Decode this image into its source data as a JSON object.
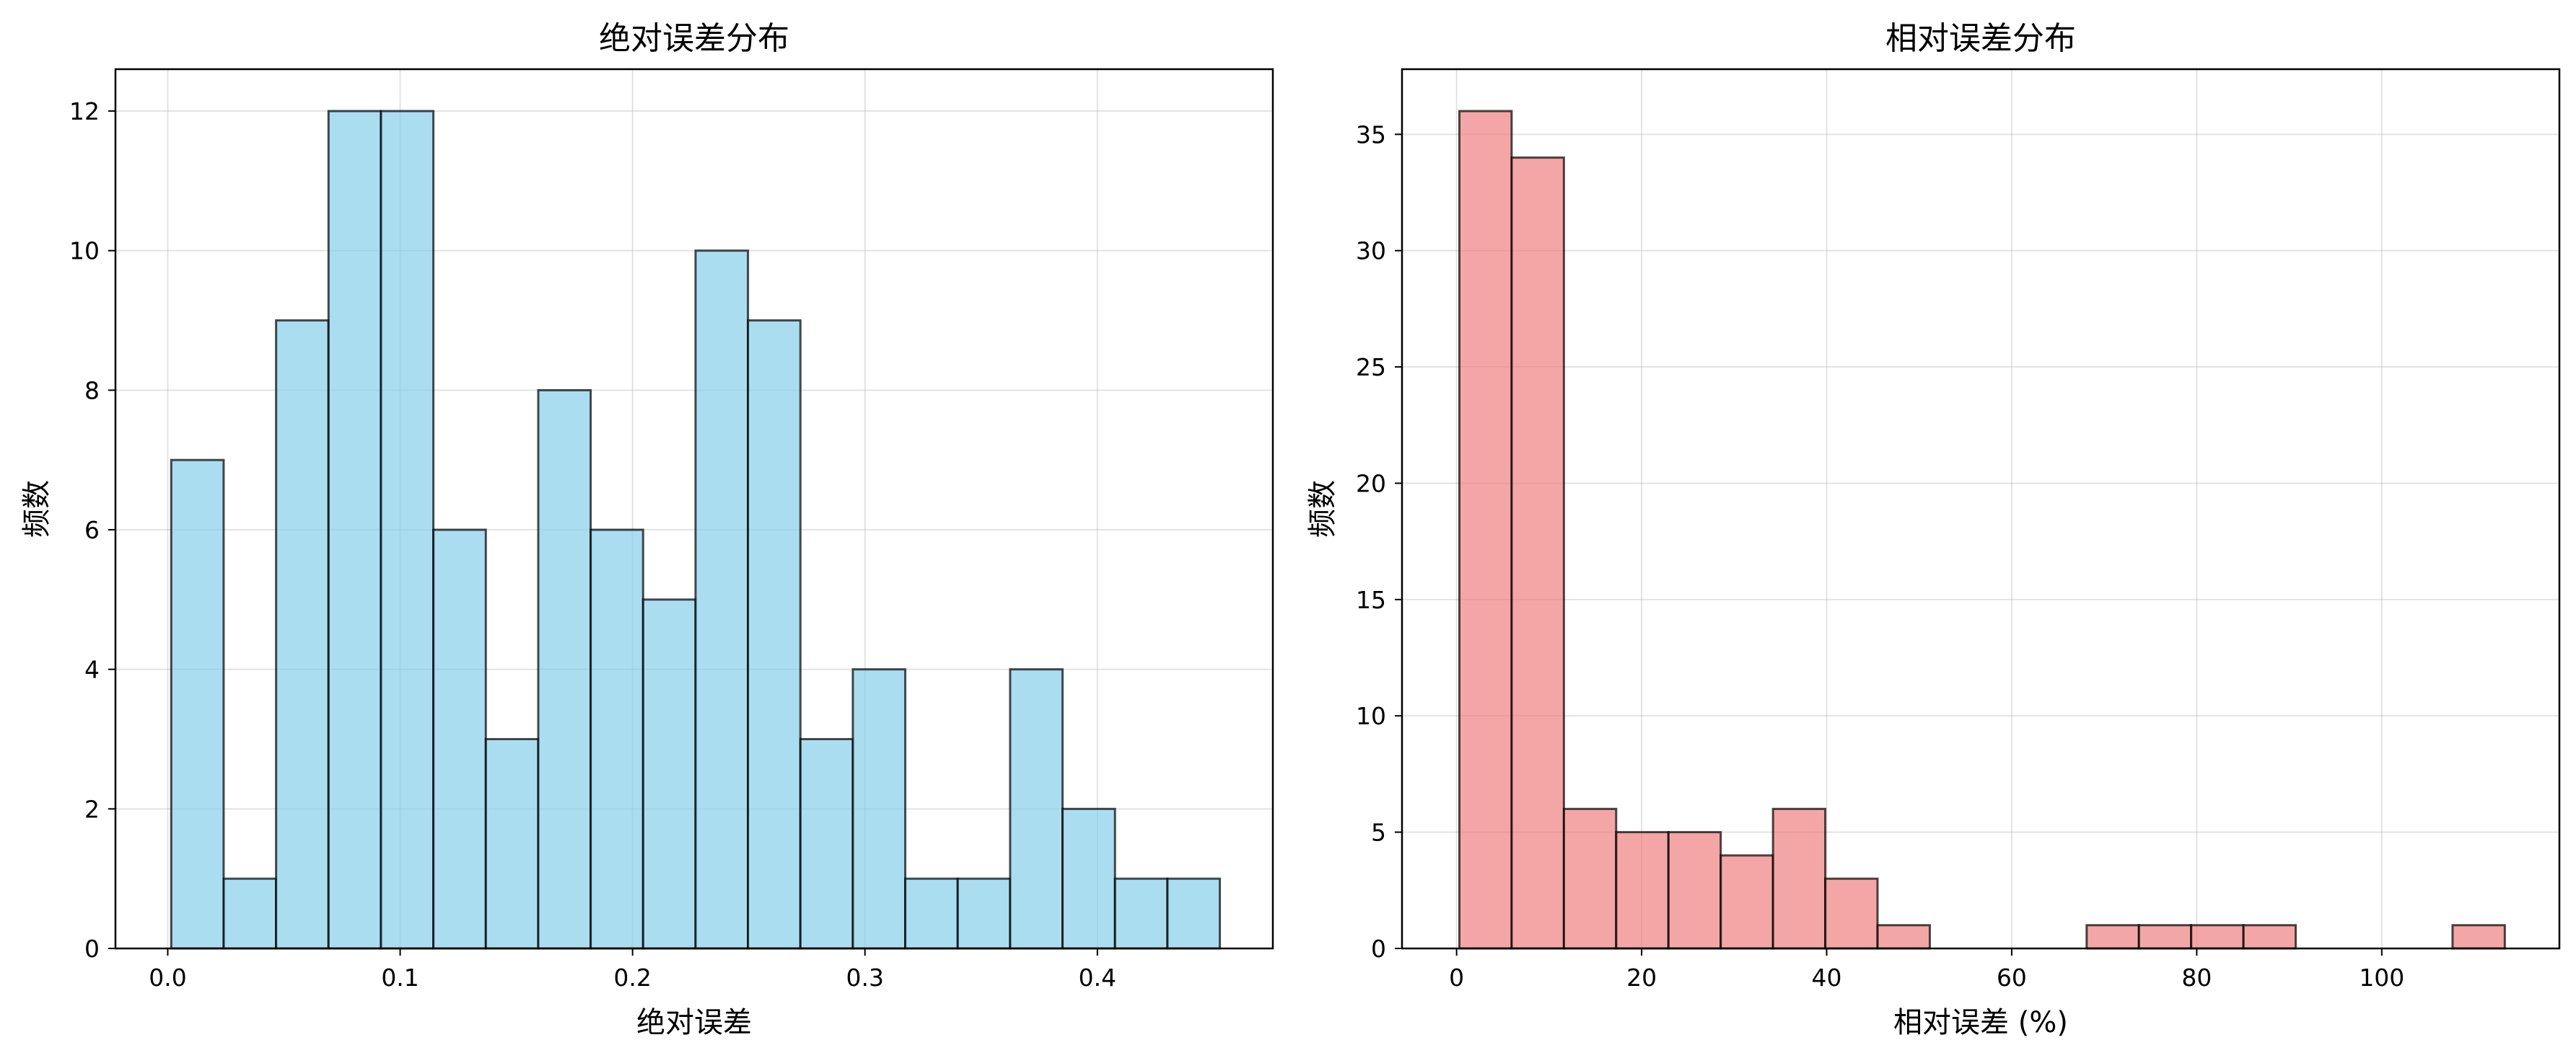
{
  "chart_data": [
    {
      "type": "bar",
      "subtype": "histogram",
      "title": "绝对误差分布",
      "xlabel": "绝对误差",
      "ylabel": "频数",
      "bar_color": "#87CEEB",
      "xlim": [
        -0.0225,
        0.4755
      ],
      "ylim": [
        0,
        12.6
      ],
      "bin_start": 0.0015,
      "bin_width": 0.02256,
      "values": [
        7,
        1,
        9,
        12,
        12,
        6,
        3,
        8,
        6,
        5,
        10,
        9,
        3,
        4,
        1,
        1,
        4,
        2,
        1,
        1
      ],
      "x_ticks": [
        0.0,
        0.1,
        0.2,
        0.3,
        0.4
      ],
      "x_tick_labels": [
        "0.0",
        "0.1",
        "0.2",
        "0.3",
        "0.4"
      ],
      "y_ticks": [
        0,
        2,
        4,
        6,
        8,
        10,
        12
      ],
      "y_tick_labels": [
        "0",
        "2",
        "4",
        "6",
        "8",
        "10",
        "12"
      ],
      "grid": true
    },
    {
      "type": "bar",
      "subtype": "histogram",
      "title": "相对误差分布",
      "xlabel": "相对误差 (%)",
      "ylabel": "频数",
      "bar_color": "#F08080",
      "xlim": [
        -5.9,
        119.2
      ],
      "ylim": [
        0,
        37.8
      ],
      "bin_start": 0.3,
      "bin_width": 5.65,
      "values": [
        36,
        34,
        6,
        5,
        5,
        4,
        6,
        3,
        1,
        0,
        0,
        0,
        1,
        1,
        1,
        1,
        0,
        0,
        0,
        1
      ],
      "x_ticks": [
        0,
        20,
        40,
        60,
        80,
        100
      ],
      "x_tick_labels": [
        "0",
        "20",
        "40",
        "60",
        "80",
        "100"
      ],
      "y_ticks": [
        0,
        5,
        10,
        15,
        20,
        25,
        30,
        35
      ],
      "y_tick_labels": [
        "0",
        "5",
        "10",
        "15",
        "20",
        "25",
        "30",
        "35"
      ],
      "grid": true
    }
  ]
}
